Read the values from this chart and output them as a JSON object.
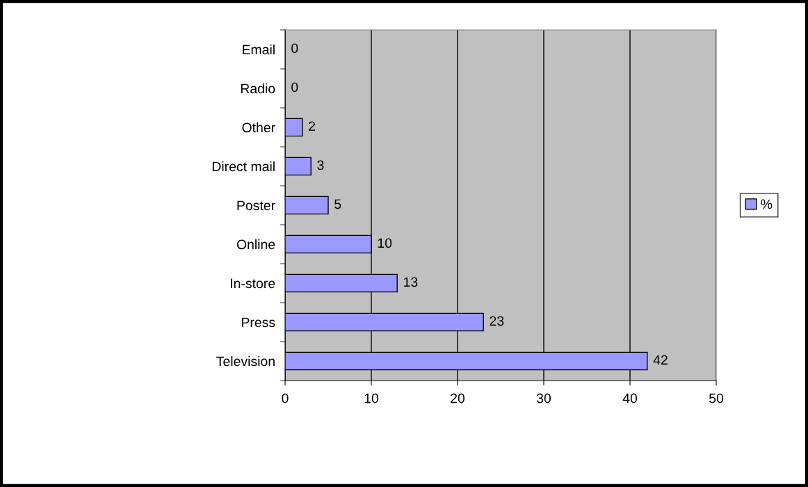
{
  "chart_data": {
    "type": "bar",
    "orientation": "horizontal",
    "categories": [
      "Email",
      "Radio",
      "Other",
      "Direct mail",
      "Poster",
      "Online",
      "In-store",
      "Press",
      "Television"
    ],
    "series": [
      {
        "name": "%",
        "color": "#9999ff",
        "values": [
          0,
          0,
          2,
          3,
          5,
          10,
          13,
          23,
          42
        ]
      }
    ],
    "xlim": [
      0,
      50
    ],
    "xticks": [
      0,
      10,
      20,
      30,
      40,
      50
    ],
    "grid": "x",
    "legend": "right",
    "data_labels": true
  }
}
